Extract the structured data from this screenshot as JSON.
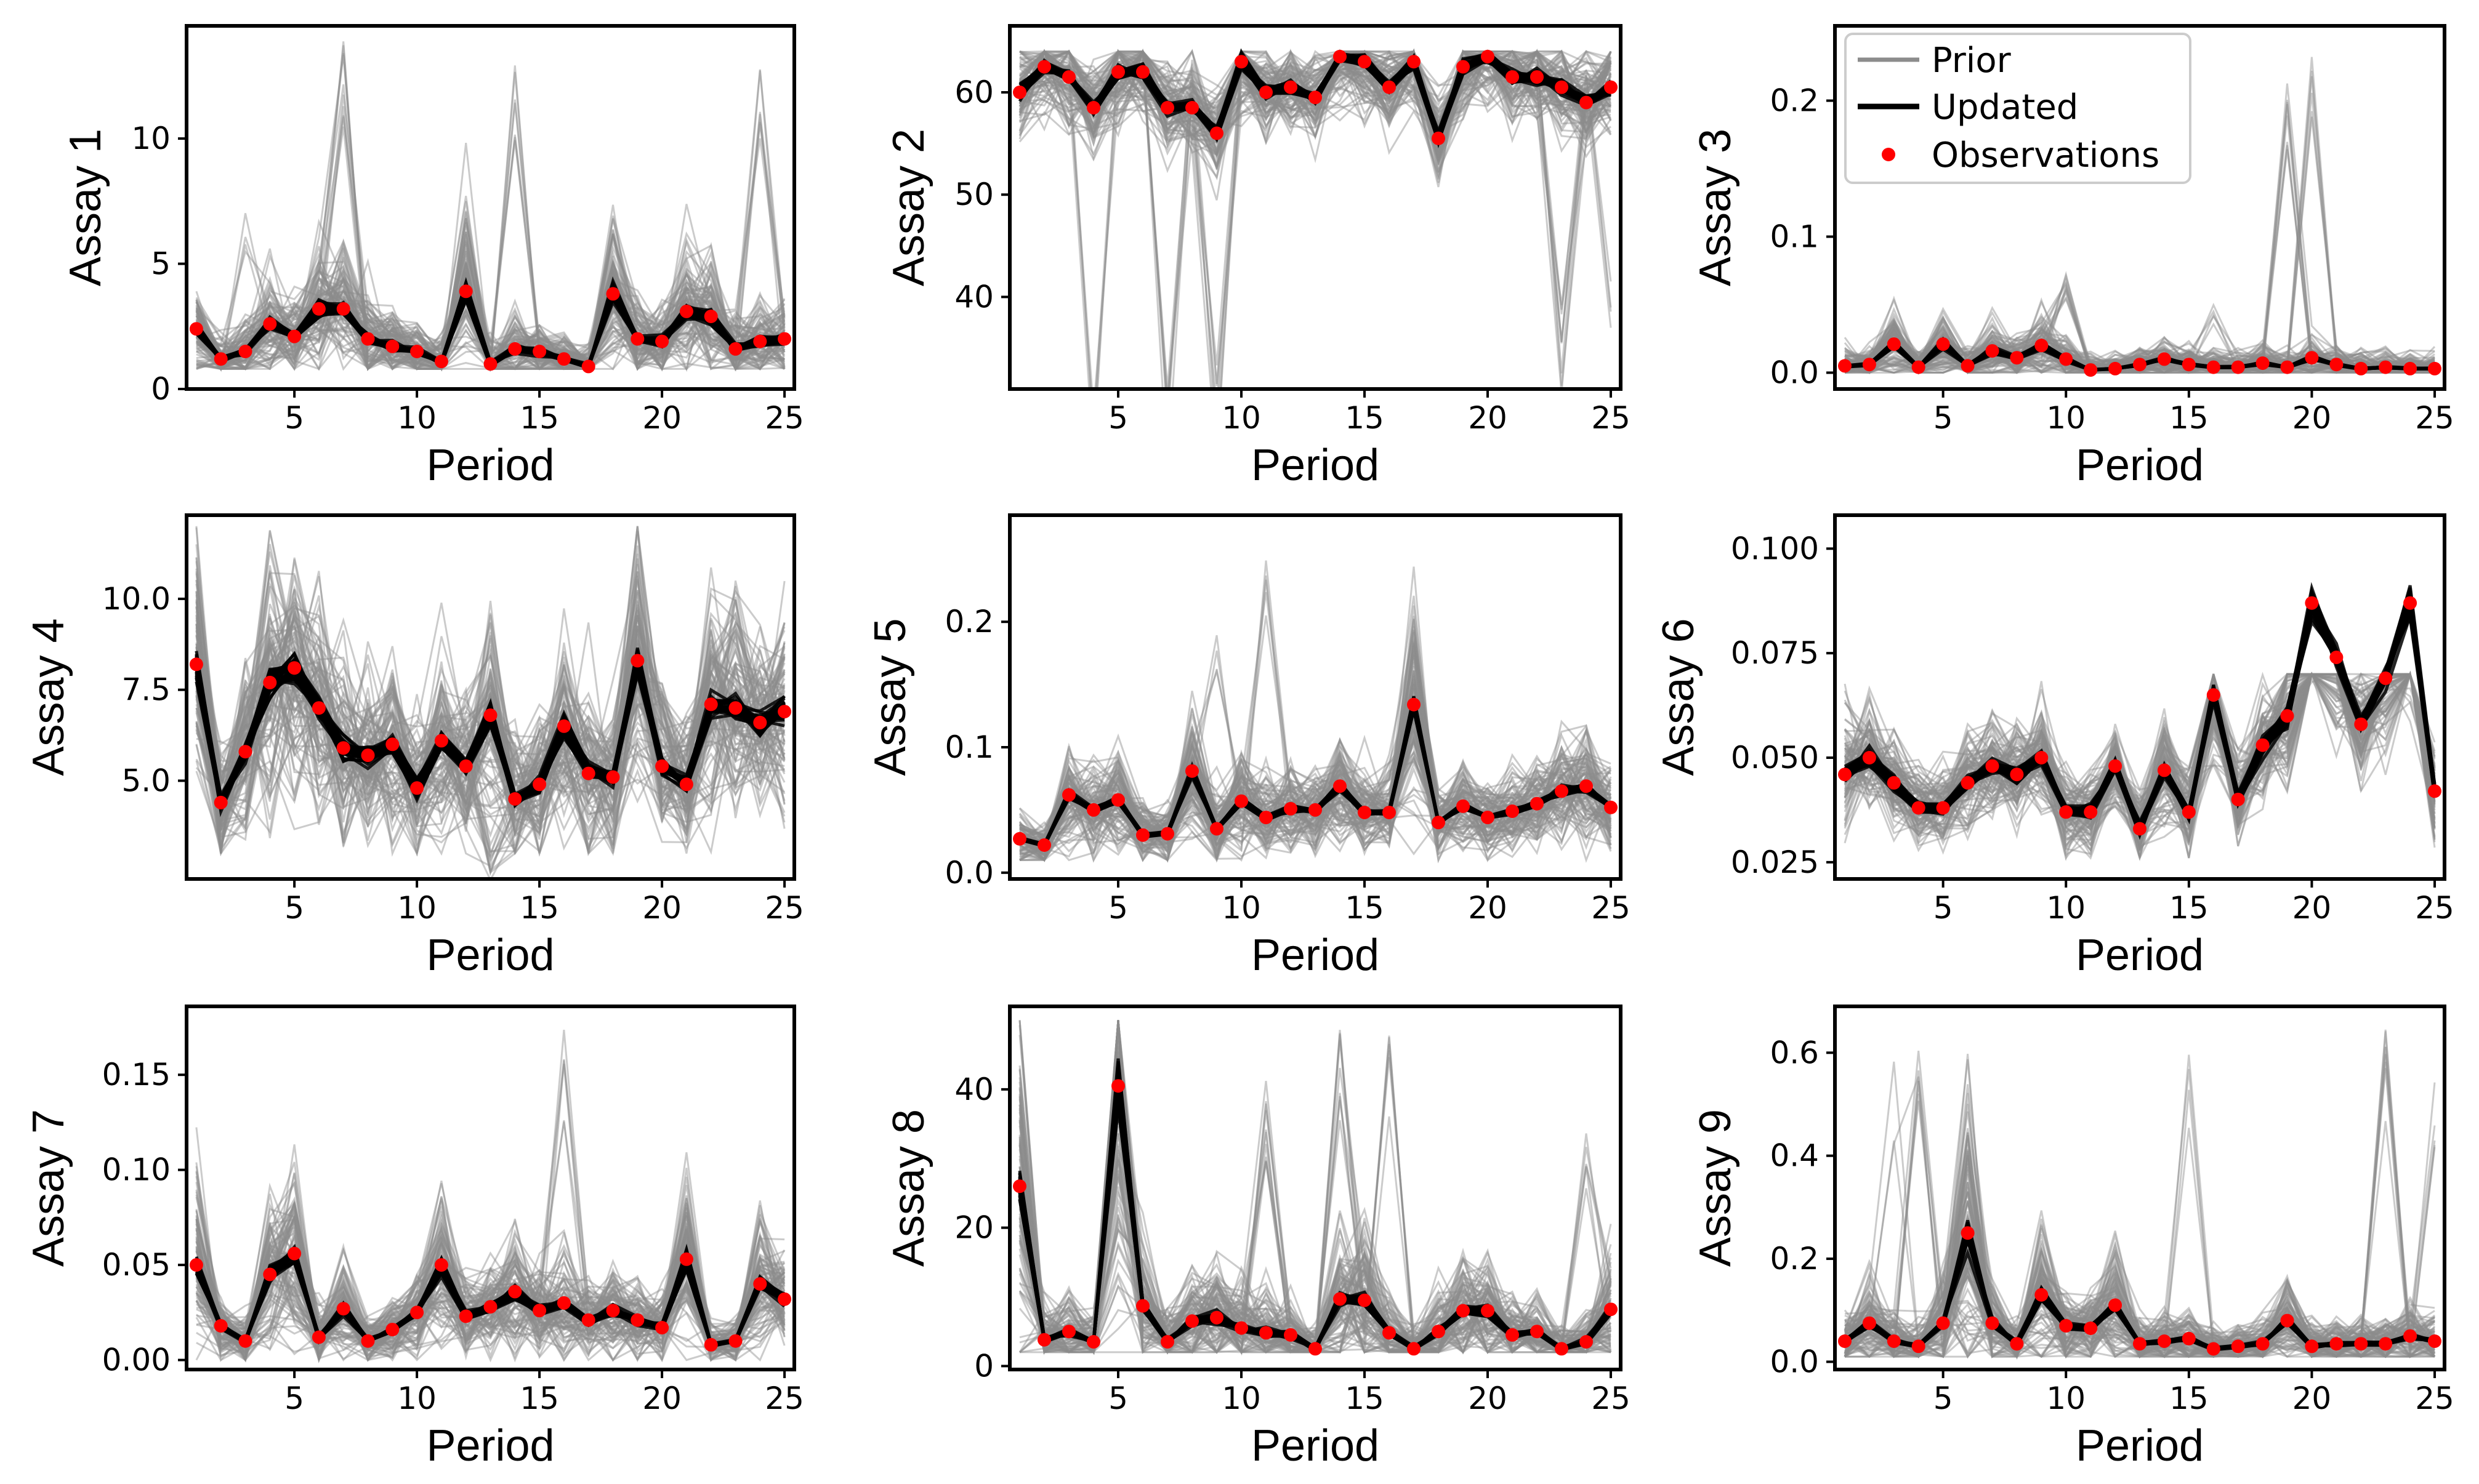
{
  "figure": {
    "legend": {
      "prior_label": "Prior",
      "updated_label": "Updated",
      "observations_label": "Observations"
    }
  },
  "colors": {
    "prior": "#8c8c8c",
    "updated": "#000000",
    "observations": "#ff0000",
    "axes": "#000000"
  },
  "chart_data": [
    {
      "type": "line",
      "ylabel": "Assay 1",
      "xlabel": "Period",
      "xlim": [
        0.6,
        25.4
      ],
      "ylim": [
        0,
        14.5
      ],
      "yticks": [
        0,
        5,
        10
      ],
      "ytick_labels": [
        "0",
        "5",
        "10"
      ],
      "xticks": [
        5,
        10,
        15,
        20,
        25
      ],
      "xtick_labels": [
        "5",
        "10",
        "15",
        "20",
        "25"
      ],
      "x": [
        1,
        2,
        3,
        4,
        5,
        6,
        7,
        8,
        9,
        10,
        11,
        12,
        13,
        14,
        15,
        16,
        17,
        18,
        19,
        20,
        21,
        22,
        23,
        24,
        25
      ],
      "observations": [
        2.4,
        1.2,
        1.5,
        2.6,
        2.1,
        3.2,
        3.2,
        2.0,
        1.7,
        1.5,
        1.1,
        3.9,
        1.0,
        1.6,
        1.5,
        1.2,
        0.9,
        3.8,
        2.0,
        1.9,
        3.1,
        2.9,
        1.6,
        1.9,
        2.0
      ],
      "prior": {
        "ensemble_size": 100,
        "spread": 0.4,
        "range": [
          0.8,
          14.0
        ],
        "spikes": [
          [
            7,
            14.0
          ],
          [
            14,
            13.5
          ],
          [
            24,
            13.9
          ],
          [
            12,
            8.0
          ],
          [
            3,
            7.5
          ]
        ]
      },
      "updated": {
        "ensemble_size": 25,
        "spread": 0.1
      }
    },
    {
      "type": "line",
      "ylabel": "Assay 2",
      "xlabel": "Period",
      "xlim": [
        0.6,
        25.4
      ],
      "ylim": [
        31,
        66.5
      ],
      "yticks": [
        40,
        50,
        60
      ],
      "ytick_labels": [
        "40",
        "50",
        "60"
      ],
      "xticks": [
        5,
        10,
        15,
        20,
        25
      ],
      "xtick_labels": [
        "5",
        "10",
        "15",
        "20",
        "25"
      ],
      "x": [
        1,
        2,
        3,
        4,
        5,
        6,
        7,
        8,
        9,
        10,
        11,
        12,
        13,
        14,
        15,
        16,
        17,
        18,
        19,
        20,
        21,
        22,
        23,
        24,
        25
      ],
      "observations": [
        60,
        62.5,
        61.5,
        58.5,
        62,
        62,
        58.5,
        58.5,
        56,
        63,
        60,
        60.5,
        59.5,
        63.5,
        63,
        60.5,
        63,
        55.5,
        62.5,
        63.5,
        61.5,
        61.5,
        60.5,
        59,
        60.5
      ],
      "prior": {
        "ensemble_size": 100,
        "spread": 0.04,
        "range": [
          32.5,
          64
        ],
        "spikes": [
          [
            4,
            32.5
          ],
          [
            7,
            32.5
          ],
          [
            9,
            34
          ],
          [
            23,
            40
          ],
          [
            25,
            45
          ]
        ]
      },
      "updated": {
        "ensemble_size": 25,
        "spread": 0.01
      }
    },
    {
      "type": "line",
      "ylabel": "Assay 3",
      "xlabel": "Period",
      "xlim": [
        0.6,
        25.4
      ],
      "ylim": [
        -0.012,
        0.255
      ],
      "yticks": [
        0,
        0.1,
        0.2
      ],
      "ytick_labels": [
        "0.0",
        "0.1",
        "0.2"
      ],
      "xticks": [
        5,
        10,
        15,
        20,
        25
      ],
      "xtick_labels": [
        "5",
        "10",
        "15",
        "20",
        "25"
      ],
      "x": [
        1,
        2,
        3,
        4,
        5,
        6,
        7,
        8,
        9,
        10,
        11,
        12,
        13,
        14,
        15,
        16,
        17,
        18,
        19,
        20,
        21,
        22,
        23,
        24,
        25
      ],
      "observations": [
        0.005,
        0.006,
        0.021,
        0.004,
        0.021,
        0.005,
        0.016,
        0.011,
        0.02,
        0.01,
        0.002,
        0.003,
        0.006,
        0.01,
        0.006,
        0.004,
        0.004,
        0.007,
        0.004,
        0.011,
        0.006,
        0.003,
        0.004,
        0.003,
        0.003
      ],
      "prior": {
        "ensemble_size": 100,
        "spread": 0.6,
        "range": [
          0.0,
          0.245
        ],
        "spikes": [
          [
            19,
            0.23
          ],
          [
            20,
            0.245
          ],
          [
            10,
            0.075
          ],
          [
            16,
            0.05
          ]
        ]
      },
      "updated": {
        "ensemble_size": 25,
        "spread": 0.15
      }
    },
    {
      "type": "line",
      "ylabel": "Assay 4",
      "xlabel": "Period",
      "xlim": [
        0.6,
        25.4
      ],
      "ylim": [
        2.3,
        12.3
      ],
      "yticks": [
        5,
        7.5,
        10
      ],
      "ytick_labels": [
        "5.0",
        "7.5",
        "10.0"
      ],
      "xticks": [
        5,
        10,
        15,
        20,
        25
      ],
      "xtick_labels": [
        "5",
        "10",
        "15",
        "20",
        "25"
      ],
      "x": [
        1,
        2,
        3,
        4,
        5,
        6,
        7,
        8,
        9,
        10,
        11,
        12,
        13,
        14,
        15,
        16,
        17,
        18,
        19,
        20,
        21,
        22,
        23,
        24,
        25
      ],
      "observations": [
        8.2,
        4.4,
        5.8,
        7.7,
        8.1,
        7.0,
        5.9,
        5.7,
        6.0,
        4.8,
        6.1,
        5.4,
        6.8,
        4.5,
        4.9,
        6.5,
        5.2,
        5.1,
        8.3,
        5.4,
        4.9,
        7.1,
        7.0,
        6.6,
        6.9
      ],
      "prior": {
        "ensemble_size": 100,
        "spread": 0.22,
        "range": [
          3.0,
          12.0
        ],
        "spikes": [
          [
            1,
            11.5
          ],
          [
            13,
            3.2
          ]
        ]
      },
      "updated": {
        "ensemble_size": 25,
        "spread": 0.05
      }
    },
    {
      "type": "line",
      "ylabel": "Assay 5",
      "xlabel": "Period",
      "xlim": [
        0.6,
        25.4
      ],
      "ylim": [
        -0.005,
        0.285
      ],
      "yticks": [
        0,
        0.1,
        0.2
      ],
      "ytick_labels": [
        "0.0",
        "0.1",
        "0.2"
      ],
      "xticks": [
        5,
        10,
        15,
        20,
        25
      ],
      "xtick_labels": [
        "5",
        "10",
        "15",
        "20",
        "25"
      ],
      "x": [
        1,
        2,
        3,
        4,
        5,
        6,
        7,
        8,
        9,
        10,
        11,
        12,
        13,
        14,
        15,
        16,
        17,
        18,
        19,
        20,
        21,
        22,
        23,
        24,
        25
      ],
      "observations": [
        0.027,
        0.022,
        0.062,
        0.05,
        0.058,
        0.03,
        0.031,
        0.081,
        0.035,
        0.057,
        0.044,
        0.051,
        0.05,
        0.069,
        0.048,
        0.048,
        0.134,
        0.04,
        0.053,
        0.044,
        0.049,
        0.055,
        0.065,
        0.069,
        0.052
      ],
      "prior": {
        "ensemble_size": 100,
        "spread": 0.35,
        "range": [
          0.01,
          0.275
        ],
        "spikes": [
          [
            11,
            0.275
          ],
          [
            9,
            0.21
          ],
          [
            17,
            0.13
          ]
        ]
      },
      "updated": {
        "ensemble_size": 25,
        "spread": 0.05
      }
    },
    {
      "type": "line",
      "ylabel": "Assay 6",
      "xlabel": "Period",
      "xlim": [
        0.6,
        25.4
      ],
      "ylim": [
        0.021,
        0.108
      ],
      "yticks": [
        0.025,
        0.05,
        0.075,
        0.1
      ],
      "ytick_labels": [
        "0.025",
        "0.050",
        "0.075",
        "0.100"
      ],
      "xticks": [
        5,
        10,
        15,
        20,
        25
      ],
      "xtick_labels": [
        "5",
        "10",
        "15",
        "20",
        "25"
      ],
      "x": [
        1,
        2,
        3,
        4,
        5,
        6,
        7,
        8,
        9,
        10,
        11,
        12,
        13,
        14,
        15,
        16,
        17,
        18,
        19,
        20,
        21,
        22,
        23,
        24,
        25
      ],
      "observations": [
        0.046,
        0.05,
        0.044,
        0.038,
        0.038,
        0.044,
        0.048,
        0.046,
        0.05,
        0.037,
        0.037,
        0.048,
        0.033,
        0.047,
        0.037,
        0.065,
        0.04,
        0.053,
        0.06,
        0.087,
        0.074,
        0.058,
        0.069,
        0.087,
        0.042
      ],
      "prior": {
        "ensemble_size": 100,
        "spread": 0.13,
        "range": [
          0.026,
          0.07
        ],
        "spikes": [
          [
            1,
            0.068
          ],
          [
            16,
            0.068
          ]
        ]
      },
      "updated": {
        "ensemble_size": 25,
        "spread": 0.04
      }
    },
    {
      "type": "line",
      "ylabel": "Assay 7",
      "xlabel": "Period",
      "xlim": [
        0.6,
        25.4
      ],
      "ylim": [
        -0.005,
        0.186
      ],
      "yticks": [
        0,
        0.05,
        0.1,
        0.15
      ],
      "ytick_labels": [
        "0.00",
        "0.05",
        "0.10",
        "0.15"
      ],
      "xticks": [
        5,
        10,
        15,
        20,
        25
      ],
      "xtick_labels": [
        "5",
        "10",
        "15",
        "20",
        "25"
      ],
      "x": [
        1,
        2,
        3,
        4,
        5,
        6,
        7,
        8,
        9,
        10,
        11,
        12,
        13,
        14,
        15,
        16,
        17,
        18,
        19,
        20,
        21,
        22,
        23,
        24,
        25
      ],
      "observations": [
        0.05,
        0.018,
        0.01,
        0.045,
        0.056,
        0.012,
        0.027,
        0.01,
        0.016,
        0.025,
        0.05,
        0.023,
        0.028,
        0.036,
        0.026,
        0.03,
        0.021,
        0.026,
        0.021,
        0.017,
        0.053,
        0.008,
        0.01,
        0.04,
        0.032
      ],
      "prior": {
        "ensemble_size": 100,
        "spread": 0.45,
        "range": [
          0.0,
          0.178
        ],
        "spikes": [
          [
            16,
            0.178
          ],
          [
            1,
            0.128
          ]
        ]
      },
      "updated": {
        "ensemble_size": 25,
        "spread": 0.1
      }
    },
    {
      "type": "line",
      "ylabel": "Assay 8",
      "xlabel": "Period",
      "xlim": [
        0.6,
        25.4
      ],
      "ylim": [
        -0.5,
        52
      ],
      "yticks": [
        0,
        20,
        40
      ],
      "ytick_labels": [
        "0",
        "20",
        "40"
      ],
      "xticks": [
        5,
        10,
        15,
        20,
        25
      ],
      "xtick_labels": [
        "5",
        "10",
        "15",
        "20",
        "25"
      ],
      "x": [
        1,
        2,
        3,
        4,
        5,
        6,
        7,
        8,
        9,
        10,
        11,
        12,
        13,
        14,
        15,
        16,
        17,
        18,
        19,
        20,
        21,
        22,
        23,
        24,
        25
      ],
      "observations": [
        26,
        3.8,
        5,
        3.5,
        40.5,
        8.7,
        3.5,
        6.5,
        7,
        5.5,
        4.8,
        4.5,
        2.5,
        9.7,
        9.5,
        4.8,
        2.5,
        5,
        8,
        8,
        4.5,
        5,
        2.5,
        3.5,
        8.2
      ],
      "prior": {
        "ensemble_size": 100,
        "spread": 0.55,
        "range": [
          2.0,
          50
        ],
        "spikes": [
          [
            14,
            50
          ],
          [
            11,
            42
          ],
          [
            16,
            48
          ],
          [
            24,
            35
          ],
          [
            5,
            48
          ]
        ]
      },
      "updated": {
        "ensemble_size": 25,
        "spread": 0.1
      }
    },
    {
      "type": "line",
      "ylabel": "Assay 9",
      "xlabel": "Period",
      "xlim": [
        0.6,
        25.4
      ],
      "ylim": [
        -0.015,
        0.69
      ],
      "yticks": [
        0,
        0.2,
        0.4,
        0.6
      ],
      "ytick_labels": [
        "0.0",
        "0.2",
        "0.4",
        "0.6"
      ],
      "xticks": [
        5,
        10,
        15,
        20,
        25
      ],
      "xtick_labels": [
        "5",
        "10",
        "15",
        "20",
        "25"
      ],
      "x": [
        1,
        2,
        3,
        4,
        5,
        6,
        7,
        8,
        9,
        10,
        11,
        12,
        13,
        14,
        15,
        16,
        17,
        18,
        19,
        20,
        21,
        22,
        23,
        24,
        25
      ],
      "observations": [
        0.04,
        0.075,
        0.04,
        0.03,
        0.075,
        0.25,
        0.075,
        0.035,
        0.13,
        0.07,
        0.065,
        0.11,
        0.035,
        0.04,
        0.045,
        0.025,
        0.03,
        0.035,
        0.08,
        0.03,
        0.035,
        0.035,
        0.035,
        0.05,
        0.04
      ],
      "prior": {
        "ensemble_size": 100,
        "spread": 0.6,
        "range": [
          0.01,
          0.66
        ],
        "spikes": [
          [
            3,
            0.6
          ],
          [
            4,
            0.62
          ],
          [
            15,
            0.6
          ],
          [
            23,
            0.66
          ],
          [
            25,
            0.57
          ]
        ]
      },
      "updated": {
        "ensemble_size": 25,
        "spread": 0.1
      }
    }
  ]
}
